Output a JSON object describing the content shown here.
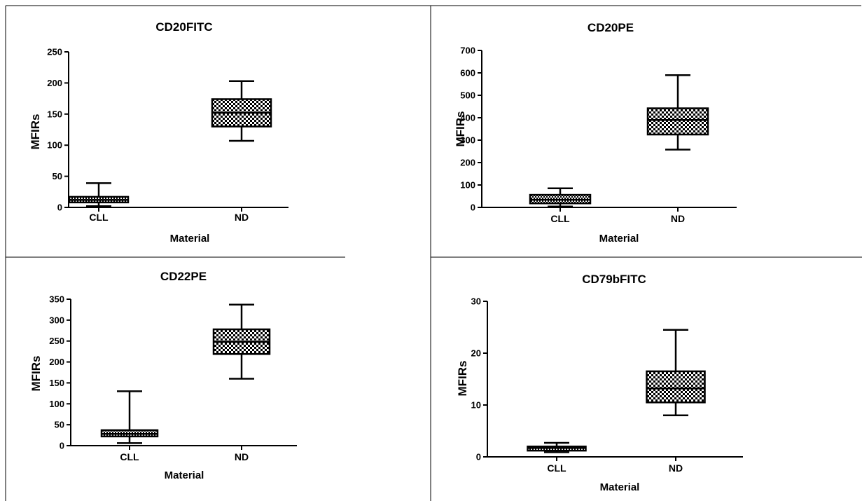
{
  "chart_data": [
    {
      "type": "box",
      "title": "CD20FITC",
      "xlabel": "Material",
      "ylabel": "MFIRs",
      "ylim": [
        0,
        250
      ],
      "yticks": [
        "0",
        "50",
        "100",
        "150",
        "200",
        "250"
      ],
      "categories": [
        "CLL",
        "ND"
      ],
      "boxes": [
        {
          "category": "CLL",
          "min": 2,
          "q1": 8,
          "median": 12,
          "q3": 17,
          "max": 39
        },
        {
          "category": "ND",
          "min": 107,
          "q1": 130,
          "median": 152,
          "q3": 174,
          "max": 203
        }
      ]
    },
    {
      "type": "box",
      "title": "CD20PE",
      "xlabel": "Material",
      "ylabel": "MFIRs",
      "ylim": [
        0,
        700
      ],
      "yticks": [
        "0",
        "100",
        "200",
        "300",
        "400",
        "500",
        "600",
        "700"
      ],
      "categories": [
        "CLL",
        "ND"
      ],
      "boxes": [
        {
          "category": "CLL",
          "min": 4,
          "q1": 18,
          "median": 34,
          "q3": 56,
          "max": 85
        },
        {
          "category": "ND",
          "min": 258,
          "q1": 325,
          "median": 390,
          "q3": 442,
          "max": 590
        }
      ]
    },
    {
      "type": "box",
      "title": "CD22PE",
      "xlabel": "Material",
      "ylabel": "MFIRs",
      "ylim": [
        0,
        350
      ],
      "yticks": [
        "0",
        "50",
        "100",
        "150",
        "200",
        "250",
        "300",
        "350"
      ],
      "categories": [
        "CLL",
        "ND"
      ],
      "boxes": [
        {
          "category": "CLL",
          "min": 6,
          "q1": 22,
          "median": 28,
          "q3": 37,
          "max": 130
        },
        {
          "category": "ND",
          "min": 160,
          "q1": 219,
          "median": 248,
          "q3": 278,
          "max": 337
        }
      ]
    },
    {
      "type": "box",
      "title": "CD79bFITC",
      "xlabel": "Material",
      "ylabel": "MFIRs",
      "ylim": [
        0,
        30
      ],
      "yticks": [
        "0",
        "10",
        "20",
        "30"
      ],
      "categories": [
        "CLL",
        "ND"
      ],
      "boxes": [
        {
          "category": "CLL",
          "min": 0.9,
          "q1": 1.2,
          "median": 1.7,
          "q3": 2.0,
          "max": 2.7
        },
        {
          "category": "ND",
          "min": 8,
          "q1": 10.5,
          "median": 13.2,
          "q3": 16.5,
          "max": 24.5
        }
      ]
    }
  ]
}
